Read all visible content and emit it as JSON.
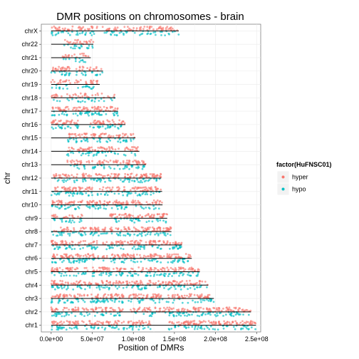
{
  "chart_data": {
    "type": "scatter",
    "title": "DMR positions on chromosomes - brain",
    "xlabel": "Position of DMRs",
    "ylabel": "chr",
    "xlim": [
      -12000000.0,
      255000000.0
    ],
    "x_ticks": [
      0,
      50000000,
      100000000,
      150000000,
      200000000,
      250000000
    ],
    "x_tick_labels": [
      "0.0e+00",
      "5.0e+07",
      "1.0e+08",
      "1.5e+08",
      "2.0e+08",
      "2.5e+08"
    ],
    "categories": [
      "chr1",
      "chr2",
      "chr3",
      "chr4",
      "chr5",
      "chr6",
      "chr7",
      "chr8",
      "chr9",
      "chr10",
      "chr11",
      "chr12",
      "chr13",
      "chr14",
      "chr15",
      "chr16",
      "chr17",
      "chr18",
      "chr19",
      "chr20",
      "chr21",
      "chr22",
      "chrX"
    ],
    "chromosome_lengths": [
      249250621,
      243199373,
      198022430,
      191154276,
      180915260,
      171115067,
      159138663,
      146364022,
      141213431,
      135534747,
      135006516,
      133851895,
      115169878,
      107349540,
      102531392,
      90354753,
      81195210,
      78077248,
      59128983,
      63025520,
      48129895,
      51304566,
      155270560
    ],
    "grid": true,
    "legend": {
      "title": "factor(HuFNSC01)",
      "position": "right",
      "entries": [
        {
          "name": "hyper",
          "color": "#F8766D"
        },
        {
          "name": "hypo",
          "color": "#00BFC4"
        }
      ]
    },
    "series": [
      {
        "name": "hyper",
        "color": "#F8766D",
        "density": [
          220,
          200,
          170,
          160,
          150,
          150,
          135,
          130,
          110,
          115,
          115,
          115,
          80,
          80,
          75,
          80,
          80,
          40,
          40,
          50,
          25,
          35,
          110
        ],
        "gaps": [
          [
            121000000.0,
            143000000.0
          ],
          [
            90000000.0,
            96000000.0
          ],
          [
            89000000.0,
            94000000.0
          ],
          [
            49000000.0,
            53000000.0
          ],
          [
            46000000.0,
            50000000.0
          ],
          [
            58000000.0,
            62000000.0
          ],
          [
            57000000.0,
            62000000.0
          ],
          [
            43000000.0,
            47000000.0
          ],
          [
            38000000.0,
            71000000.0
          ],
          [
            38000000.0,
            43000000.0
          ],
          [
            50000000.0,
            55000000.0
          ],
          [
            33000000.0,
            38000000.0
          ],
          [
            0,
            19000000.0
          ],
          [
            0,
            19000000.0
          ],
          [
            0,
            20000000.0
          ],
          [
            34000000.0,
            47000000.0
          ],
          [
            22000000.0,
            26000000.0
          ],
          [
            15000000.0,
            19000000.0
          ],
          [
            24000000.0,
            29000000.0
          ],
          [
            25000000.0,
            30000000.0
          ],
          [
            0,
            14000000.0
          ],
          [
            0,
            16000000.0
          ],
          [
            58000000.0,
            62000000.0
          ]
        ]
      },
      {
        "name": "hypo",
        "color": "#00BFC4",
        "density": [
          140,
          130,
          110,
          100,
          100,
          100,
          90,
          80,
          75,
          75,
          75,
          75,
          55,
          55,
          50,
          55,
          55,
          28,
          28,
          33,
          17,
          25,
          75
        ],
        "gaps": [
          [
            121000000.0,
            143000000.0
          ],
          [
            90000000.0,
            96000000.0
          ],
          [
            89000000.0,
            94000000.0
          ],
          [
            49000000.0,
            53000000.0
          ],
          [
            46000000.0,
            50000000.0
          ],
          [
            58000000.0,
            62000000.0
          ],
          [
            57000000.0,
            62000000.0
          ],
          [
            43000000.0,
            47000000.0
          ],
          [
            38000000.0,
            71000000.0
          ],
          [
            38000000.0,
            43000000.0
          ],
          [
            50000000.0,
            55000000.0
          ],
          [
            33000000.0,
            38000000.0
          ],
          [
            0,
            19000000.0
          ],
          [
            0,
            19000000.0
          ],
          [
            0,
            20000000.0
          ],
          [
            34000000.0,
            47000000.0
          ],
          [
            22000000.0,
            26000000.0
          ],
          [
            15000000.0,
            19000000.0
          ],
          [
            24000000.0,
            29000000.0
          ],
          [
            25000000.0,
            30000000.0
          ],
          [
            0,
            14000000.0
          ],
          [
            0,
            16000000.0
          ],
          [
            58000000.0,
            62000000.0
          ]
        ]
      }
    ]
  }
}
